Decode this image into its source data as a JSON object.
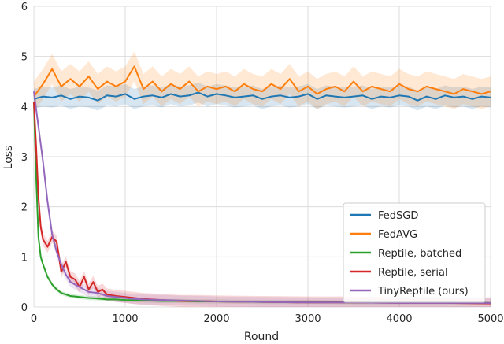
{
  "chart_data": {
    "type": "line",
    "title": "",
    "xlabel": "Round",
    "ylabel": "Loss",
    "xlim": [
      0,
      5000
    ],
    "ylim": [
      0,
      6
    ],
    "xticks": [
      "0",
      "1000",
      "2000",
      "3000",
      "4000",
      "5000"
    ],
    "yticks": [
      "0",
      "1",
      "2",
      "3",
      "4",
      "5",
      "6"
    ],
    "grid": true,
    "legend_position": "lower-right",
    "series": [
      {
        "name": "FedSGD",
        "color": "#1f77b4",
        "x": [
          0,
          100,
          200,
          300,
          400,
          500,
          600,
          700,
          800,
          900,
          1000,
          1100,
          1200,
          1300,
          1400,
          1500,
          1600,
          1700,
          1800,
          1900,
          2000,
          2100,
          2200,
          2300,
          2400,
          2500,
          2600,
          2700,
          2800,
          2900,
          3000,
          3100,
          3200,
          3300,
          3400,
          3500,
          3600,
          3700,
          3800,
          3900,
          4000,
          4100,
          4200,
          4300,
          4400,
          4500,
          4600,
          4700,
          4800,
          4900,
          5000
        ],
        "y": [
          4.15,
          4.2,
          4.18,
          4.22,
          4.15,
          4.2,
          4.18,
          4.12,
          4.22,
          4.2,
          4.25,
          4.15,
          4.2,
          4.22,
          4.18,
          4.25,
          4.2,
          4.22,
          4.28,
          4.2,
          4.25,
          4.22,
          4.18,
          4.2,
          4.22,
          4.15,
          4.2,
          4.22,
          4.18,
          4.2,
          4.25,
          4.15,
          4.22,
          4.2,
          4.18,
          4.2,
          4.22,
          4.15,
          4.2,
          4.18,
          4.22,
          4.2,
          4.12,
          4.2,
          4.15,
          4.22,
          4.18,
          4.2,
          4.15,
          4.2,
          4.18
        ],
        "band": 0.2
      },
      {
        "name": "FedAVG",
        "color": "#ff7f0e",
        "x": [
          0,
          100,
          200,
          300,
          400,
          500,
          600,
          700,
          800,
          900,
          1000,
          1100,
          1200,
          1300,
          1400,
          1500,
          1600,
          1700,
          1800,
          1900,
          2000,
          2100,
          2200,
          2300,
          2400,
          2500,
          2600,
          2700,
          2800,
          2900,
          3000,
          3100,
          3200,
          3300,
          3400,
          3500,
          3600,
          3700,
          3800,
          3900,
          4000,
          4100,
          4200,
          4300,
          4400,
          4500,
          4600,
          4700,
          4800,
          4900,
          5000
        ],
        "y": [
          4.2,
          4.45,
          4.75,
          4.4,
          4.55,
          4.4,
          4.6,
          4.35,
          4.5,
          4.4,
          4.5,
          4.8,
          4.35,
          4.5,
          4.3,
          4.45,
          4.35,
          4.5,
          4.3,
          4.4,
          4.35,
          4.4,
          4.3,
          4.45,
          4.35,
          4.3,
          4.45,
          4.35,
          4.55,
          4.3,
          4.4,
          4.25,
          4.35,
          4.4,
          4.3,
          4.5,
          4.3,
          4.4,
          4.35,
          4.3,
          4.45,
          4.35,
          4.3,
          4.4,
          4.35,
          4.3,
          4.25,
          4.35,
          4.3,
          4.25,
          4.3
        ],
        "band": 0.3
      },
      {
        "name": "Reptile, batched",
        "color": "#2ca02c",
        "x": [
          0,
          25,
          50,
          75,
          100,
          150,
          200,
          250,
          300,
          400,
          500,
          600,
          700,
          800,
          900,
          1000,
          1200,
          1400,
          1600,
          1800,
          2000,
          2500,
          3000,
          3500,
          4000,
          4500,
          5000
        ],
        "y": [
          4.1,
          2.6,
          1.4,
          1.0,
          0.85,
          0.6,
          0.45,
          0.35,
          0.28,
          0.22,
          0.2,
          0.18,
          0.17,
          0.15,
          0.15,
          0.14,
          0.13,
          0.12,
          0.12,
          0.11,
          0.11,
          0.1,
          0.1,
          0.09,
          0.09,
          0.09,
          0.08
        ],
        "band": 0.04
      },
      {
        "name": "Reptile, serial",
        "color": "#d62728",
        "x": [
          0,
          25,
          50,
          75,
          100,
          150,
          200,
          250,
          300,
          350,
          400,
          450,
          500,
          550,
          600,
          650,
          700,
          750,
          800,
          900,
          1000,
          1100,
          1200,
          1400,
          1600,
          1800,
          2000,
          2500,
          3000,
          3500,
          4000,
          4500,
          5000
        ],
        "y": [
          4.1,
          3.2,
          2.2,
          1.6,
          1.35,
          1.2,
          1.4,
          1.3,
          0.7,
          0.9,
          0.6,
          0.55,
          0.4,
          0.6,
          0.35,
          0.5,
          0.3,
          0.35,
          0.25,
          0.22,
          0.2,
          0.18,
          0.16,
          0.14,
          0.12,
          0.12,
          0.11,
          0.1,
          0.09,
          0.09,
          0.08,
          0.08,
          0.07
        ],
        "band": 0.12
      },
      {
        "name": "TinyReptile (ours)",
        "color": "#9467bd",
        "x": [
          0,
          50,
          100,
          150,
          200,
          250,
          300,
          350,
          400,
          450,
          500,
          550,
          600,
          700,
          800,
          900,
          1000,
          1100,
          1200,
          1400,
          1600,
          1800,
          2000,
          2500,
          3000,
          3500,
          4000,
          4500,
          5000
        ],
        "y": [
          4.3,
          3.6,
          2.9,
          2.1,
          1.45,
          1.1,
          0.85,
          0.65,
          0.5,
          0.45,
          0.4,
          0.35,
          0.3,
          0.28,
          0.22,
          0.2,
          0.18,
          0.16,
          0.15,
          0.14,
          0.13,
          0.12,
          0.11,
          0.1,
          0.09,
          0.09,
          0.08,
          0.08,
          0.08
        ],
        "band": 0.1
      }
    ]
  }
}
